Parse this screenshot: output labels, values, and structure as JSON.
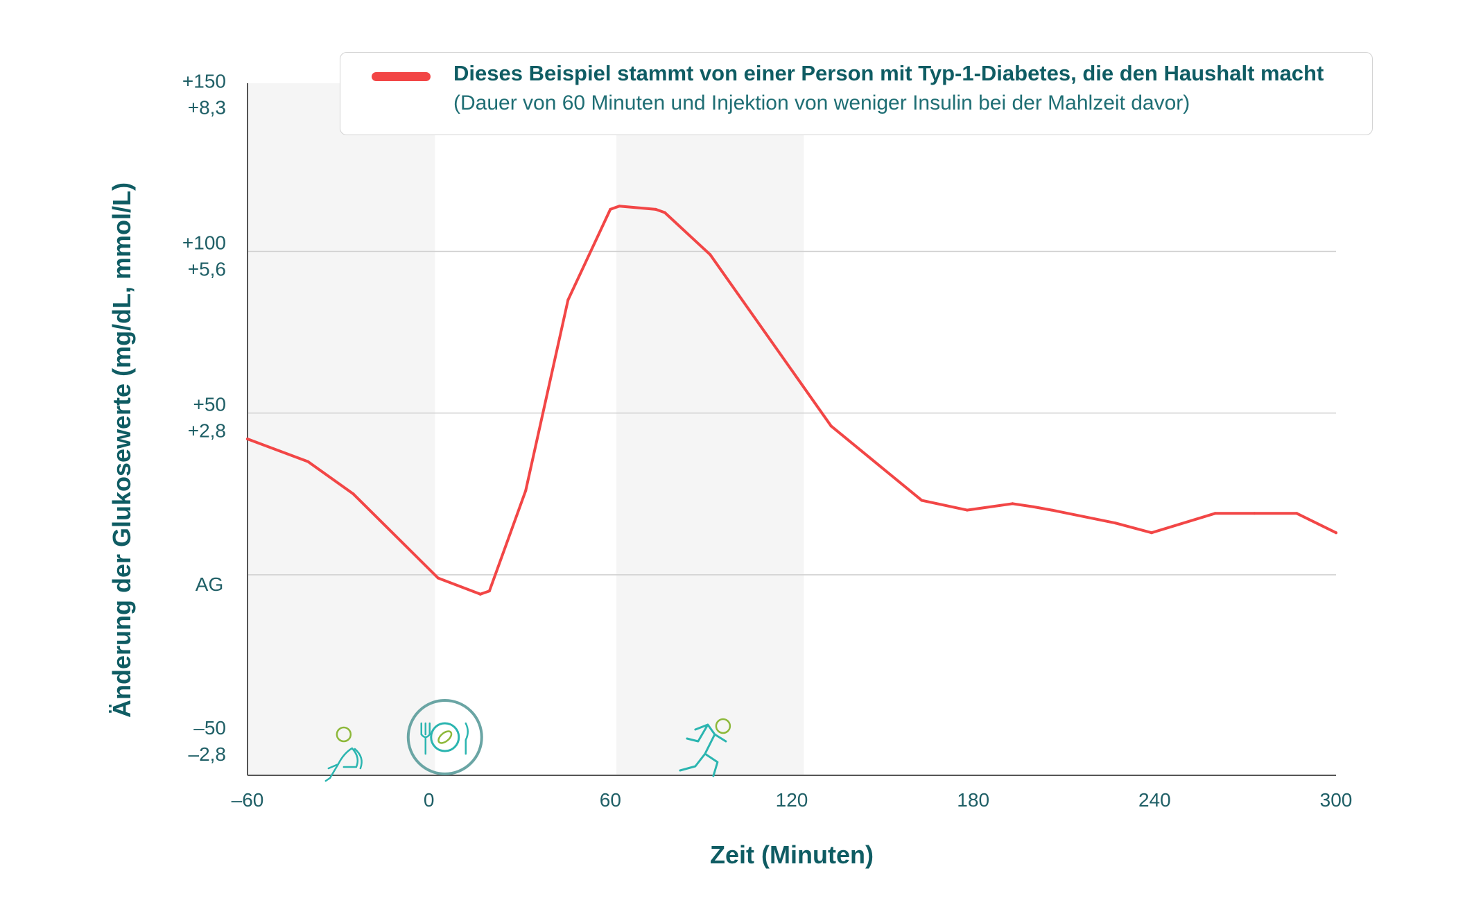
{
  "chart_data": {
    "type": "line",
    "xlabel": "Zeit (Minuten)",
    "ylabel": "Änderung der Glukosewerte (mg/dL, mmol/L)",
    "xlim": [
      -60,
      300
    ],
    "ylim": [
      -62,
      152
    ],
    "x_ticks": [
      {
        "value": -60,
        "label": "–60"
      },
      {
        "value": 0,
        "label": "0"
      },
      {
        "value": 60,
        "label": "60"
      },
      {
        "value": 120,
        "label": "120"
      },
      {
        "value": 180,
        "label": "180"
      },
      {
        "value": 240,
        "label": "240"
      },
      {
        "value": 300,
        "label": "300"
      }
    ],
    "y_ticks": [
      {
        "value": 150,
        "mgdl": "+150",
        "mmol": "+8,3",
        "grid": false
      },
      {
        "value": 100,
        "mgdl": "+100",
        "mmol": "+5,6",
        "grid": true
      },
      {
        "value": 50,
        "mgdl": "+50",
        "mmol": "+2,8",
        "grid": true
      },
      {
        "value": 0,
        "label": "AG",
        "grid": true
      },
      {
        "value": -50,
        "mgdl": "–50",
        "mmol": "–2,8",
        "grid": false
      }
    ],
    "grid": true,
    "shaded_x_ranges": [
      [
        -60,
        2
      ],
      [
        62,
        124
      ]
    ],
    "series": [
      {
        "name": "Dieses Beispiel stammt von einer Person mit Typ-1-Diabetes, die den Haushalt macht",
        "color": "#f24646",
        "x": [
          -60,
          -40,
          -25,
          3,
          17,
          20,
          32,
          46,
          60,
          63,
          75,
          78,
          93,
          133,
          163,
          178,
          193,
          200,
          206,
          227,
          239,
          260,
          273,
          287,
          300
        ],
        "y": [
          42,
          35,
          25,
          -1,
          -6,
          -5,
          26,
          85,
          113,
          114,
          113,
          112,
          99,
          46,
          23,
          20,
          22,
          21,
          20,
          16,
          13,
          19,
          19,
          19,
          13
        ]
      }
    ],
    "legend": {
      "placement": "top",
      "title": "Dieses Beispiel stammt von einer Person mit Typ-1-Diabetes, die den Haushalt macht",
      "subtitle": "(Dauer von 60 Minuten und Injektion von weniger Insulin bei der Mahlzeit davor)"
    },
    "event_icons": [
      {
        "x": -30,
        "name": "sitting-person-icon"
      },
      {
        "x": 3,
        "name": "meal-plate-icon"
      },
      {
        "x": 92,
        "name": "running-person-icon"
      }
    ]
  }
}
